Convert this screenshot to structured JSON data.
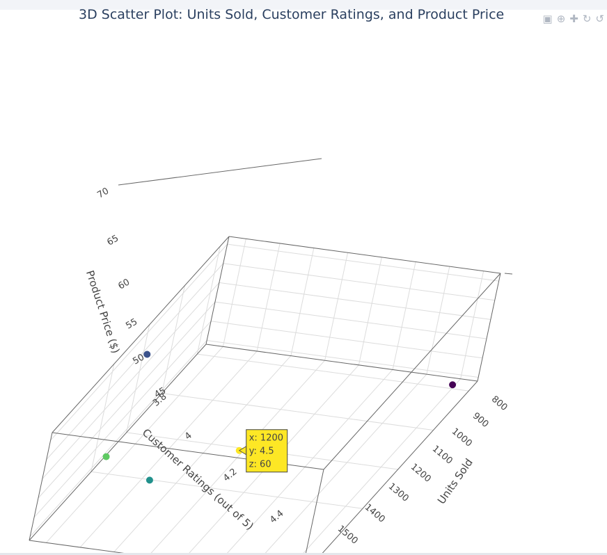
{
  "chart_data": {
    "type": "scatter3d",
    "title": "3D Scatter Plot: Units Sold, Customer Ratings, and Product Price",
    "x_axis": {
      "label": "Units Sold",
      "ticks": [
        800,
        900,
        1000,
        1100,
        1200,
        1300,
        1400,
        1500
      ]
    },
    "y_axis": {
      "label": "Customer Ratings (out of 5)",
      "ticks": [
        "3.8",
        "4",
        "4.2",
        "4.4"
      ]
    },
    "z_axis": {
      "label": "Product Price ($)",
      "ticks": [
        45,
        50,
        55,
        60,
        65,
        70
      ]
    },
    "points": [
      {
        "x": 1500,
        "y": 3.8,
        "z": 45,
        "color": "#440154"
      },
      {
        "x": 800,
        "y": 4.3,
        "z": 70,
        "color": "#3b528b"
      },
      {
        "x": 1000,
        "y": 4.6,
        "z": 55,
        "color": "#21918c"
      },
      {
        "x": 900,
        "y": 4.7,
        "z": 65,
        "color": "#5ec962"
      },
      {
        "x": 1200,
        "y": 4.5,
        "z": 60,
        "color": "#fde725"
      }
    ],
    "tooltip": {
      "x": "x: 1200",
      "y": "y: 4.5",
      "z": "z: 60",
      "color": "#fde725"
    }
  },
  "modebar": {
    "icons": [
      "camera-icon",
      "zoom-icon",
      "pan-icon",
      "orbit-rotate-icon",
      "turntable-rotate-icon"
    ]
  }
}
